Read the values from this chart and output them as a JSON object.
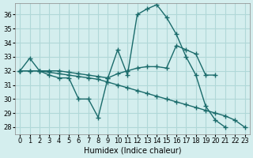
{
  "xlabel": "Humidex (Indice chaleur)",
  "ylabel": "",
  "background_color": "#d4eeee",
  "grid_color": "#b0d8d8",
  "line_color": "#1a6b6b",
  "xlim": [
    -0.5,
    23.5
  ],
  "ylim": [
    27.5,
    36.8
  ],
  "yticks": [
    28,
    29,
    30,
    31,
    32,
    33,
    34,
    35,
    36
  ],
  "xticks": [
    0,
    1,
    2,
    3,
    4,
    5,
    6,
    7,
    8,
    9,
    10,
    11,
    12,
    13,
    14,
    15,
    16,
    17,
    18,
    19,
    20,
    21,
    22,
    23
  ],
  "line1_x": [
    0,
    1,
    2,
    3,
    4,
    5,
    6,
    7,
    8,
    9,
    10,
    11,
    12,
    13,
    14,
    15,
    16,
    17,
    18,
    19,
    20,
    21
  ],
  "line1_y": [
    32.0,
    32.9,
    32.0,
    31.7,
    31.5,
    31.5,
    30.0,
    30.0,
    28.7,
    31.5,
    33.5,
    31.7,
    36.0,
    36.4,
    36.7,
    35.8,
    34.6,
    33.0,
    31.7,
    29.5,
    28.5,
    28.0
  ],
  "line2_x": [
    0,
    1,
    2,
    3,
    4,
    5,
    6,
    7,
    8,
    9,
    10,
    11,
    12,
    13,
    14,
    15,
    16,
    17,
    18,
    19,
    20
  ],
  "line2_y": [
    32.0,
    32.0,
    32.0,
    32.0,
    32.0,
    31.9,
    31.8,
    31.7,
    31.6,
    31.5,
    31.8,
    32.0,
    32.2,
    32.3,
    32.3,
    32.2,
    33.8,
    33.5,
    33.2,
    31.7,
    31.7
  ],
  "line3_x": [
    0,
    1,
    2,
    3,
    4,
    5,
    6,
    7,
    8,
    9,
    10,
    11,
    12,
    13,
    14,
    15,
    16,
    17,
    18,
    19,
    20,
    21,
    22,
    23
  ],
  "line3_y": [
    32.0,
    32.0,
    32.0,
    31.9,
    31.8,
    31.7,
    31.6,
    31.5,
    31.4,
    31.2,
    31.0,
    30.8,
    30.6,
    30.4,
    30.2,
    30.0,
    29.8,
    29.6,
    29.4,
    29.2,
    29.0,
    28.8,
    28.5,
    28.0
  ]
}
